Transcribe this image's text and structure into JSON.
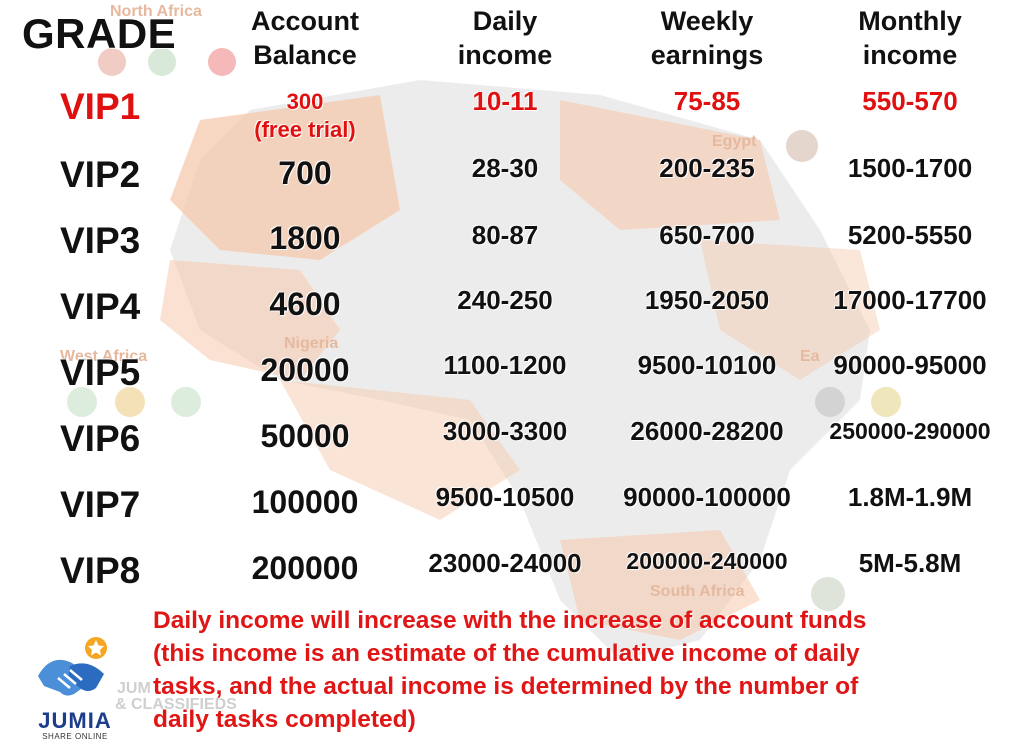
{
  "headers": {
    "grade": "GRADE",
    "balance": [
      "Account",
      "Balance"
    ],
    "daily": [
      "Daily",
      "income"
    ],
    "weekly": [
      "Weekly",
      "earnings"
    ],
    "monthly": [
      "Monthly",
      "income"
    ]
  },
  "rows": [
    {
      "grade": "VIP1",
      "balance": "300",
      "balance_note": "(free trial)",
      "daily": "10-11",
      "weekly": "75-85",
      "monthly": "550-570"
    },
    {
      "grade": "VIP2",
      "balance": "700",
      "daily": "28-30",
      "weekly": "200-235",
      "monthly": "1500-1700"
    },
    {
      "grade": "VIP3",
      "balance": "1800",
      "daily": "80-87",
      "weekly": "650-700",
      "monthly": "5200-5550"
    },
    {
      "grade": "VIP4",
      "balance": "4600",
      "daily": "240-250",
      "weekly": "1950-2050",
      "monthly": "17000-17700"
    },
    {
      "grade": "VIP5",
      "balance": "20000",
      "daily": "1100-1200",
      "weekly": "9500-10100",
      "monthly": "90000-95000"
    },
    {
      "grade": "VIP6",
      "balance": "50000",
      "daily": "3000-3300",
      "weekly": "26000-28200",
      "monthly": "250000-290000"
    },
    {
      "grade": "VIP7",
      "balance": "100000",
      "daily": "9500-10500",
      "weekly": "90000-100000",
      "monthly": "1.8M-1.9M"
    },
    {
      "grade": "VIP8",
      "balance": "200000",
      "daily": "23000-24000",
      "weekly": "200000-240000",
      "monthly": "5M-5.8M"
    }
  ],
  "note": [
    "Daily income will increase with the increase of account funds",
    "(this income is an estimate of the cumulative income of daily",
    "tasks, and the actual income is determined by the number of",
    "daily tasks completed)"
  ],
  "logo": {
    "word": "JUMIA",
    "sub": "SHARE ONLINE"
  },
  "background_labels": {
    "north_africa": "North Africa",
    "egypt": "Egypt",
    "nigeria": "Nigeria",
    "west_africa": "West Africa",
    "east_africa": "Ea",
    "south_africa": "South Africa",
    "jumia_bg": "JUM",
    "classifieds": "& CLASSIFIEDS"
  },
  "colors": {
    "accent_red": "#e01010",
    "text": "#111111",
    "map_orange": "#f6c9ad",
    "map_grey": "#d9d9d9",
    "logo_blue": "#1c3d8c",
    "logo_star": "#f5a623"
  }
}
